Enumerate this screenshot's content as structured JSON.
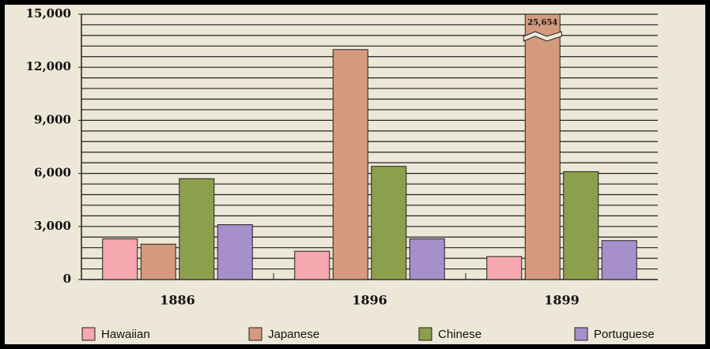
{
  "chart_data": {
    "type": "bar",
    "categories": [
      "1886",
      "1896",
      "1899"
    ],
    "series": [
      {
        "name": "Hawaiian",
        "color": "#f5a8ad",
        "values": [
          2300,
          1600,
          1300
        ]
      },
      {
        "name": "Japanese",
        "color": "#d49a7e",
        "values": [
          2000,
          13000,
          25654
        ],
        "value_labels": [
          null,
          null,
          "25,654"
        ]
      },
      {
        "name": "Chinese",
        "color": "#8c9f4c",
        "values": [
          5700,
          6400,
          6100
        ]
      },
      {
        "name": "Portuguese",
        "color": "#a68fca",
        "values": [
          3100,
          2300,
          2200
        ]
      }
    ],
    "ylim": [
      0,
      15000
    ],
    "yticks": [
      {
        "value": 0,
        "label": "0"
      },
      {
        "value": 3000,
        "label": "3,000"
      },
      {
        "value": 6000,
        "label": "6,000"
      },
      {
        "value": 9000,
        "label": "9,000"
      },
      {
        "value": 12000,
        "label": "12,000"
      },
      {
        "value": 15000,
        "label": "15,000"
      }
    ],
    "grid_lines": [
      600,
      1200,
      1800,
      2400,
      3000,
      3600,
      4200,
      4800,
      5400,
      6000,
      6600,
      7200,
      7800,
      8400,
      9000,
      9600,
      10200,
      10800,
      11400,
      12000,
      12600,
      13200,
      13800,
      14400,
      15000
    ],
    "grid": true,
    "legend": "bottom"
  }
}
